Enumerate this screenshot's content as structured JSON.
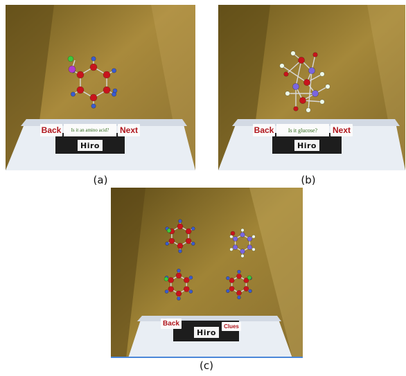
{
  "panels": {
    "a": {
      "caption": "(a)",
      "back_label": "Back",
      "question": "Is it an amino acid?",
      "next_label": "Next",
      "marker_text": "Hiro"
    },
    "b": {
      "caption": "(b)",
      "back_label": "Back",
      "question": "Is it glucose?",
      "next_label": "Next",
      "marker_text": "Hiro"
    },
    "c": {
      "caption": "(c)",
      "back_label": "Back",
      "clues_label": "Clues",
      "marker_text": "Hiro"
    }
  },
  "colors": {
    "atom_red": "#c8141c",
    "atom_blue": "#3a5bd0",
    "atom_green": "#3cc83c",
    "atom_purple": "#b03cd0",
    "atom_white": "#eefae8",
    "atom_violet": "#7a66e0",
    "button_text": "#b0151c",
    "question_text": "#2f6b1a"
  }
}
